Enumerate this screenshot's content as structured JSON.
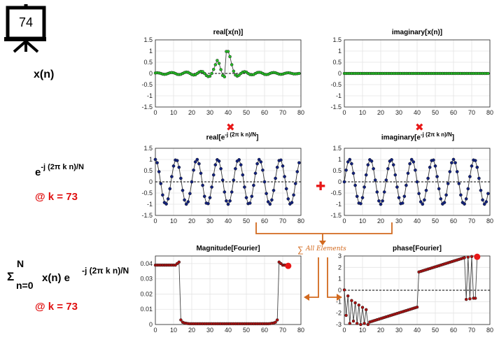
{
  "slide": {
    "number": "74"
  },
  "labels": {
    "xn": "x(n)",
    "kernel_base": "e",
    "kernel_exp": "-j (2π k n)/N",
    "k_value_1": "@ k = 73",
    "sum_sigma": "Σ",
    "sum_sup": "N",
    "sum_sub": "n=0",
    "sum_body": "x(n) e",
    "sum_exp": "-j (2π k n)/N",
    "k_value_2": "@ k = 73",
    "all_elements": "All Elements",
    "times_symbol": "✖",
    "plus_symbol": "✚"
  },
  "colors": {
    "green": "#22c322",
    "navy": "#10207e",
    "darkred": "#b01010",
    "red": "#e81818",
    "orange": "#d2691e"
  },
  "chart_data": [
    {
      "id": "real_x",
      "type": "scatter",
      "title": "real[x(n)]",
      "color": "#22c322",
      "xlim": [
        0,
        80
      ],
      "ylim": [
        -1.5,
        1.5
      ],
      "xticks": [
        0,
        10,
        20,
        30,
        40,
        50,
        60,
        70,
        80
      ],
      "yticks": [
        -1.5,
        -1,
        -0.5,
        0,
        0.5,
        1,
        1.5
      ],
      "yticklabels": [
        "-1.5",
        "-1",
        "-0.5",
        "0",
        "0.5",
        "1",
        "1.5"
      ],
      "x_range": [
        0,
        79
      ],
      "values": [
        0.02,
        0.03,
        0.02,
        0,
        -0.03,
        -0.04,
        -0.03,
        0,
        0.03,
        0.04,
        0.03,
        0,
        -0.04,
        -0.05,
        -0.04,
        0,
        0.04,
        0.06,
        0.05,
        0,
        -0.05,
        -0.07,
        -0.06,
        0,
        0.06,
        0.09,
        0.08,
        0,
        -0.09,
        -0.14,
        -0.12,
        0,
        0.18,
        0.39,
        0.58,
        0.45,
        0.17,
        -0.09,
        -0.15,
        0.98,
        0.98,
        0.75,
        0.39,
        0.1,
        -0.07,
        -0.12,
        -0.08,
        0,
        0.06,
        0.08,
        0.06,
        0,
        -0.05,
        -0.06,
        -0.05,
        0,
        0.04,
        0.05,
        0.04,
        0,
        -0.04,
        -0.05,
        -0.04,
        0,
        0.03,
        0.04,
        0.03,
        0,
        -0.03,
        -0.04,
        -0.03,
        0,
        0.02,
        0.03,
        0.02,
        0,
        -0.02,
        -0.02,
        -0.01,
        0
      ]
    },
    {
      "id": "imag_x",
      "type": "scatter",
      "title": "imaginary[x(n)]",
      "color": "#22c322",
      "xlim": [
        0,
        80
      ],
      "ylim": [
        -1.5,
        1.5
      ],
      "xticks": [
        0,
        10,
        20,
        30,
        40,
        50,
        60,
        70,
        80
      ],
      "yticks": [
        -1.5,
        -1,
        -0.5,
        0,
        0.5,
        1,
        1.5
      ],
      "yticklabels": [
        "-1.5",
        "-1",
        "-0.5",
        "0",
        "0.5",
        "1",
        "1.5"
      ],
      "x_range": [
        0,
        79
      ],
      "constant": 0
    },
    {
      "id": "real_kernel",
      "type": "line",
      "title_main": "real[e",
      "title_sup": "-j (2π k n)/N",
      "title_end": "]",
      "color": "#10207e",
      "xlim": [
        0,
        80
      ],
      "ylim": [
        -1.5,
        1.5
      ],
      "xticks": [
        0,
        10,
        20,
        30,
        40,
        50,
        60,
        70,
        80
      ],
      "yticks": [
        -1.5,
        -1,
        -0.5,
        0,
        0.5,
        1,
        1.5
      ],
      "yticklabels": [
        "-1.5",
        "-1",
        "-0.5",
        "0",
        "0.5",
        "1",
        "1.5"
      ],
      "x_range": [
        0,
        79
      ],
      "k": 73,
      "N": 80,
      "component": "cos"
    },
    {
      "id": "imag_kernel",
      "type": "line",
      "title_main": "imaginary[e",
      "title_sup": "-j (2π k n)/N",
      "title_end": "]",
      "color": "#10207e",
      "xlim": [
        0,
        80
      ],
      "ylim": [
        -1.5,
        1.5
      ],
      "xticks": [
        0,
        10,
        20,
        30,
        40,
        50,
        60,
        70,
        80
      ],
      "yticks": [
        -1.5,
        -1,
        -0.5,
        0,
        0.5,
        1,
        1.5
      ],
      "yticklabels": [
        "-1.5",
        "-1",
        "-0.5",
        "0",
        "0.5",
        "1",
        "1.5"
      ],
      "x_range": [
        0,
        79
      ],
      "k": 73,
      "N": 80,
      "component": "-sin"
    },
    {
      "id": "magnitude",
      "type": "line",
      "title": "Magnitude[Fourier]",
      "color": "#b01010",
      "xlim": [
        0,
        80
      ],
      "ylim": [
        0,
        0.045
      ],
      "xticks": [
        0,
        10,
        20,
        30,
        40,
        50,
        60,
        70,
        80
      ],
      "yticks": [
        0,
        0.01,
        0.02,
        0.03,
        0.04
      ],
      "yticklabels": [
        "0",
        "0.01",
        "0.02",
        "0.03",
        "0.04"
      ],
      "x_range": [
        0,
        73
      ],
      "highlight_x": 73,
      "highlight_y": 0.0385,
      "values": [
        0.039,
        0.039,
        0.039,
        0.039,
        0.039,
        0.039,
        0.039,
        0.039,
        0.039,
        0.039,
        0.039,
        0.039,
        0.04,
        0.041,
        0.003,
        0.0015,
        0.001,
        0.0008,
        0.0006,
        0.0005,
        0.0005,
        0.0005,
        0.0005,
        0.0005,
        0.0005,
        0.0005,
        0.0005,
        0.0005,
        0.0005,
        0.0005,
        0.0005,
        0.0005,
        0.0005,
        0.0005,
        0.0005,
        0.0005,
        0.0005,
        0.0005,
        0.0005,
        0.0005,
        0.0005,
        0.0005,
        0.0005,
        0.0005,
        0.0005,
        0.0005,
        0.0005,
        0.0005,
        0.0005,
        0.0005,
        0.0005,
        0.0005,
        0.0005,
        0.0005,
        0.0005,
        0.0005,
        0.0005,
        0.0005,
        0.0005,
        0.0005,
        0.0005,
        0.0005,
        0.0005,
        0.0006,
        0.0008,
        0.001,
        0.0015,
        0.003,
        0.041,
        0.04,
        0.039,
        0.039,
        0.039,
        0.0385
      ]
    },
    {
      "id": "phase",
      "type": "line",
      "title": "phase[Fourier]",
      "color": "#b01010",
      "xlim": [
        0,
        80
      ],
      "ylim": [
        -3,
        3
      ],
      "xticks": [
        0,
        10,
        20,
        30,
        40,
        50,
        60,
        70,
        80
      ],
      "yticks": [
        -3,
        -2,
        -1,
        0,
        1,
        2,
        3
      ],
      "yticklabels": [
        "-3",
        "-2",
        "-1",
        "0",
        "1",
        "2",
        "3"
      ],
      "x_range": [
        0,
        73
      ],
      "highlight_x": 73,
      "highlight_y": 2.93,
      "values": [
        0.03,
        -2.2,
        -0.5,
        -2.9,
        -0.9,
        -2.7,
        -1.1,
        -2.9,
        -1.3,
        -3.0,
        -1.5,
        -2.9,
        -1.7,
        -3.0,
        -2.78,
        -2.73,
        -2.68,
        -2.63,
        -2.58,
        -2.53,
        -2.48,
        -2.43,
        -2.38,
        -2.33,
        -2.28,
        -2.23,
        -2.18,
        -2.13,
        -2.08,
        -2.03,
        -1.98,
        -1.93,
        -1.88,
        -1.83,
        -1.78,
        -1.73,
        -1.68,
        -1.63,
        -1.58,
        -1.53,
        -1.48,
        1.6,
        1.65,
        1.7,
        1.75,
        1.8,
        1.85,
        1.9,
        1.95,
        2.0,
        2.05,
        2.1,
        2.15,
        2.2,
        2.25,
        2.3,
        2.35,
        2.4,
        2.45,
        2.5,
        2.55,
        2.6,
        2.65,
        2.7,
        2.75,
        2.8,
        2.85,
        -0.8,
        2.9,
        -0.75,
        2.95,
        -0.7,
        -0.7,
        2.93
      ]
    }
  ]
}
